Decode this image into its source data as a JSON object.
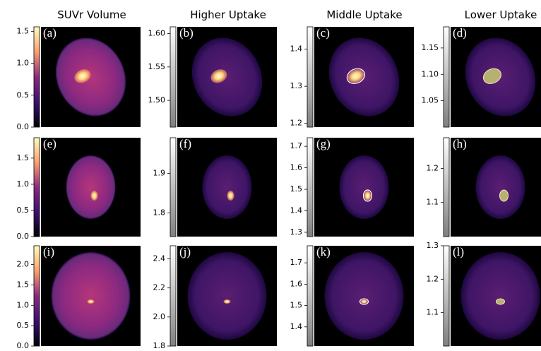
{
  "columns": [
    "SUVr Volume",
    "Higher Uptake",
    "Middle Uptake",
    "Lower Uptake"
  ],
  "rows": [
    [
      {
        "label": "(a)",
        "cbar_lim": [
          0,
          1.57
        ],
        "cbar_ticks": [
          {
            "value": 0,
            "label": "0.0"
          },
          0.5,
          {
            "value": 1,
            "label": "1.0"
          },
          1.5
        ]
      },
      {
        "label": "(b)",
        "cbar_lim": [
          1.46,
          1.61
        ],
        "cbar_ticks": [
          {
            "value": 1.5,
            "label": "1.50"
          },
          1.55,
          {
            "value": 1.6,
            "label": "1.60"
          }
        ]
      },
      {
        "label": "(c)",
        "cbar_lim": [
          1.19,
          1.46
        ],
        "cbar_ticks": [
          1.2,
          1.3,
          1.4
        ]
      },
      {
        "label": "(d)",
        "cbar_lim": [
          1.0,
          1.19
        ],
        "cbar_ticks": [
          1.05,
          {
            "value": 1.1,
            "label": "1.10"
          },
          1.15
        ]
      }
    ],
    [
      {
        "label": "(e)",
        "cbar_lim": [
          0,
          1.89
        ],
        "cbar_ticks": [
          {
            "value": 0,
            "label": "0.0"
          },
          0.5,
          {
            "value": 1,
            "label": "1.0"
          },
          1.5
        ]
      },
      {
        "label": "(f)",
        "cbar_lim": [
          1.74,
          1.99
        ],
        "cbar_ticks": [
          1.8,
          1.9
        ]
      },
      {
        "label": "(g)",
        "cbar_lim": [
          1.28,
          1.74
        ],
        "cbar_ticks": [
          1.3,
          1.4,
          1.5,
          1.6,
          1.7
        ]
      },
      {
        "label": "(h)",
        "cbar_lim": [
          1.0,
          1.29
        ],
        "cbar_ticks": [
          1.1,
          1.2
        ]
      }
    ],
    [
      {
        "label": "(i)",
        "cbar_lim": [
          0,
          2.46
        ],
        "cbar_ticks": [
          {
            "value": 0,
            "label": "0.0"
          },
          0.5,
          {
            "value": 1,
            "label": "1.0"
          },
          1.5,
          {
            "value": 2,
            "label": "2.0"
          }
        ]
      },
      {
        "label": "(j)",
        "cbar_lim": [
          1.8,
          2.49
        ],
        "cbar_ticks": [
          1.8,
          {
            "value": 2,
            "label": "2.0"
          },
          2.2,
          2.4
        ]
      },
      {
        "label": "(k)",
        "cbar_lim": [
          1.31,
          1.78
        ],
        "cbar_ticks": [
          1.4,
          1.5,
          1.6,
          1.7
        ]
      },
      {
        "label": "(l)",
        "cbar_lim": [
          1.0,
          1.3
        ],
        "cbar_ticks": [
          1.1,
          1.2,
          1.3
        ]
      }
    ]
  ]
}
